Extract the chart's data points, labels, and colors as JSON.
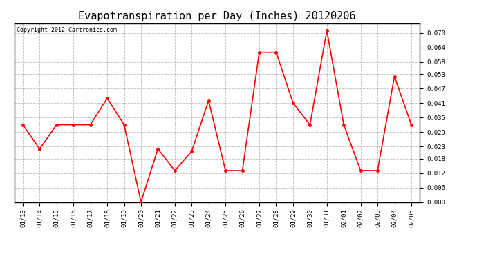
{
  "title": "Evapotranspiration per Day (Inches) 20120206",
  "copyright_text": "Copyright 2012 Cartronics.com",
  "x_labels": [
    "01/13",
    "01/14",
    "01/15",
    "01/16",
    "01/17",
    "01/18",
    "01/19",
    "01/20",
    "01/21",
    "01/22",
    "01/23",
    "01/24",
    "01/25",
    "01/26",
    "01/27",
    "01/28",
    "01/29",
    "01/30",
    "01/31",
    "02/01",
    "02/02",
    "02/03",
    "02/04",
    "02/05"
  ],
  "y_values": [
    0.032,
    0.022,
    0.032,
    0.032,
    0.032,
    0.043,
    0.032,
    0.0,
    0.022,
    0.013,
    0.021,
    0.042,
    0.013,
    0.013,
    0.062,
    0.062,
    0.041,
    0.032,
    0.071,
    0.032,
    0.013,
    0.013,
    0.052,
    0.032
  ],
  "line_color": "#ff0000",
  "marker_color": "#ff0000",
  "marker_style": "o",
  "marker_size": 2.5,
  "line_width": 1.2,
  "background_color": "#ffffff",
  "plot_bg_color": "#ffffff",
  "grid_color": "#bbbbbb",
  "ylim": [
    0.0,
    0.074
  ],
  "yticks": [
    0.0,
    0.006,
    0.012,
    0.018,
    0.023,
    0.029,
    0.035,
    0.041,
    0.047,
    0.053,
    0.058,
    0.064,
    0.07
  ],
  "title_fontsize": 11,
  "copyright_fontsize": 6,
  "tick_fontsize": 6.5
}
